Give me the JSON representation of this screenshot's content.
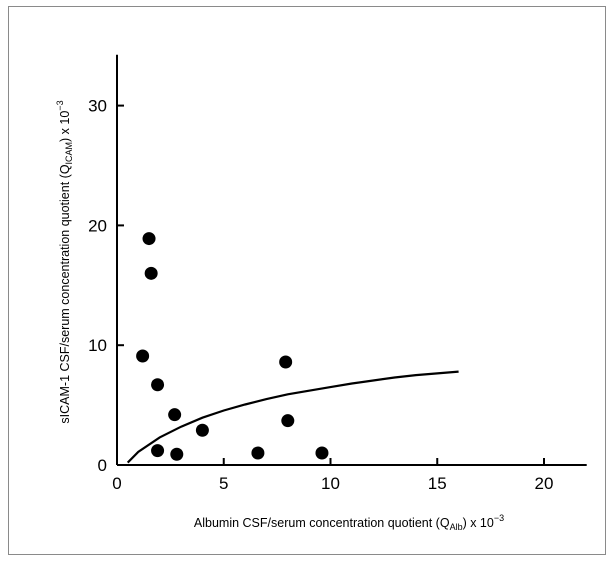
{
  "chart_data": {
    "type": "scatter",
    "xlabel": {
      "prefix": "Albumin CSF/serum concentration quotient (Q",
      "sub": "Alb",
      "suffix": ") x 10",
      "sup": "−3"
    },
    "ylabel": {
      "prefix": "sICAM-1 CSF/serum concentration quotient (Q",
      "sub": "ICAM",
      "suffix": ") x 10",
      "sup": "−3"
    },
    "xlim": [
      0,
      22
    ],
    "ylim": [
      0,
      35
    ],
    "xticks": [
      0,
      5,
      10,
      15,
      20
    ],
    "yticks": [
      0,
      10,
      20,
      30
    ],
    "grid": false,
    "points": [
      {
        "x": 1.5,
        "y": 18.9
      },
      {
        "x": 1.6,
        "y": 16.0
      },
      {
        "x": 1.2,
        "y": 9.1
      },
      {
        "x": 1.9,
        "y": 6.7
      },
      {
        "x": 2.7,
        "y": 4.2
      },
      {
        "x": 1.9,
        "y": 1.2
      },
      {
        "x": 2.8,
        "y": 0.9
      },
      {
        "x": 4.0,
        "y": 2.9
      },
      {
        "x": 6.6,
        "y": 1.0
      },
      {
        "x": 7.9,
        "y": 8.6
      },
      {
        "x": 8.0,
        "y": 3.7
      },
      {
        "x": 9.6,
        "y": 1.0
      }
    ],
    "curve": [
      {
        "x": 0.5,
        "y": 0.2
      },
      {
        "x": 1.0,
        "y": 1.1
      },
      {
        "x": 2.0,
        "y": 2.3
      },
      {
        "x": 3.0,
        "y": 3.2
      },
      {
        "x": 4.0,
        "y": 3.95
      },
      {
        "x": 5.0,
        "y": 4.55
      },
      {
        "x": 6.0,
        "y": 5.05
      },
      {
        "x": 7.0,
        "y": 5.5
      },
      {
        "x": 8.0,
        "y": 5.9
      },
      {
        "x": 9.0,
        "y": 6.2
      },
      {
        "x": 10.0,
        "y": 6.5
      },
      {
        "x": 11.0,
        "y": 6.8
      },
      {
        "x": 12.0,
        "y": 7.05
      },
      {
        "x": 13.0,
        "y": 7.3
      },
      {
        "x": 14.0,
        "y": 7.5
      },
      {
        "x": 15.0,
        "y": 7.65
      },
      {
        "x": 16.0,
        "y": 7.8
      }
    ]
  }
}
